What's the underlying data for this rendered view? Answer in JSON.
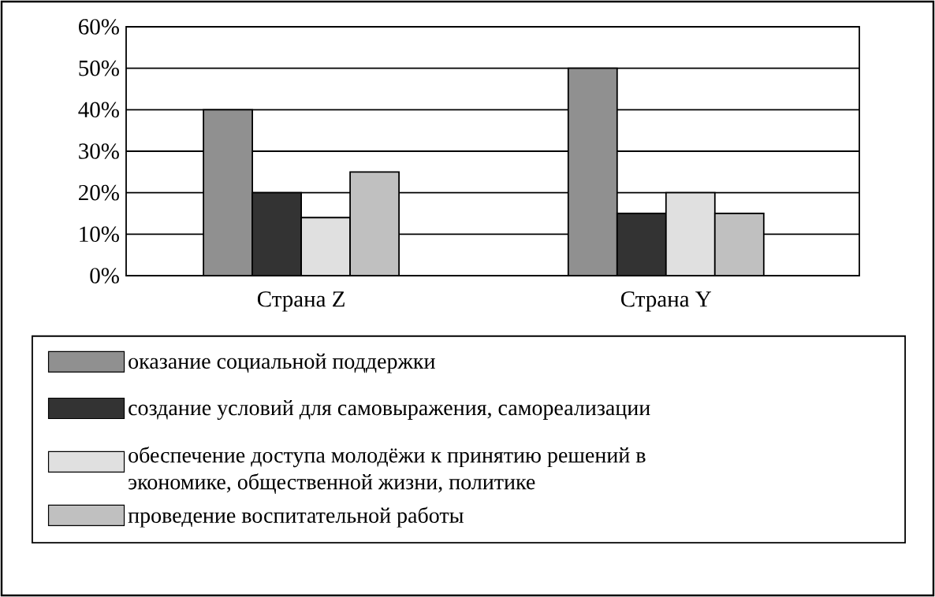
{
  "chart_data": {
    "type": "bar",
    "categories": [
      "Страна Z",
      "Страна Y"
    ],
    "series": [
      {
        "name": "оказание социальной поддержки",
        "color": "#909090",
        "values": [
          40,
          50
        ]
      },
      {
        "name": "создание условий для самовыражения, самореализации",
        "color": "#333333",
        "values": [
          20,
          15
        ]
      },
      {
        "name": "обеспечение доступа молодёжи к принятию решений в экономике, общественной жизни, политике",
        "color": "#e0e0e0",
        "values": [
          14,
          20
        ]
      },
      {
        "name": "проведение воспитательной работы",
        "color": "#c0c0c0",
        "values": [
          25,
          15
        ]
      }
    ],
    "ylim": [
      0,
      60
    ],
    "yticks": [
      {
        "value": 0,
        "label": "0%"
      },
      {
        "value": 10,
        "label": "10%"
      },
      {
        "value": 20,
        "label": "20%"
      },
      {
        "value": 30,
        "label": "30%"
      },
      {
        "value": 40,
        "label": "40%"
      },
      {
        "value": 50,
        "label": "50%"
      },
      {
        "value": 60,
        "label": "60%"
      }
    ],
    "grid": "y",
    "legend": "bottom"
  }
}
